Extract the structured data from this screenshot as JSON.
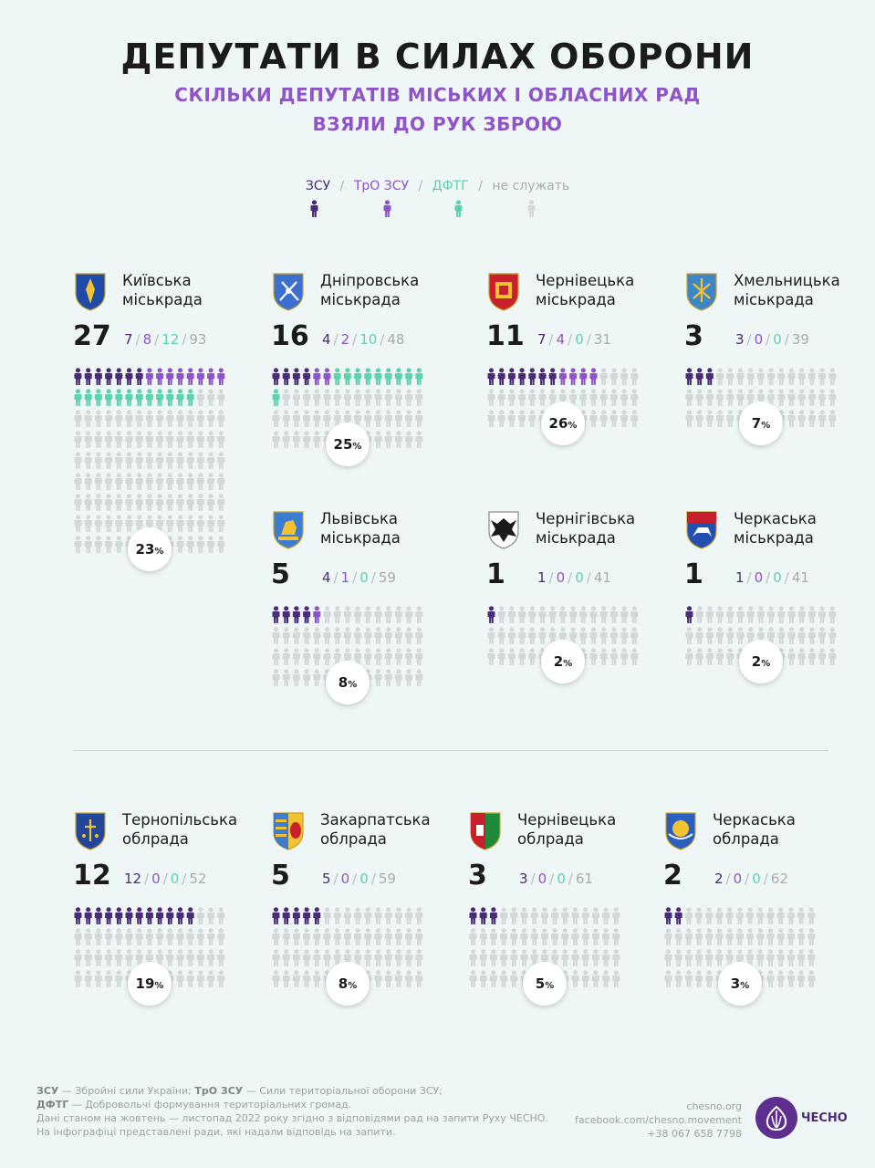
{
  "title": "ДЕПУТАТИ В СИЛАХ ОБОРОНИ",
  "subtitle_line1": "СКІЛЬКИ ДЕПУТАТІВ МІСЬКИХ І ОБЛАСНИХ РАД",
  "subtitle_line2": "ВЗЯЛИ ДО РУК ЗБРОЮ",
  "legend": {
    "zsu": "ЗСУ",
    "tro": "ТрО ЗСУ",
    "dftg": "ДФТГ",
    "not_serving": "не служать",
    "separator": "/"
  },
  "colors": {
    "zsu": "#4a2b78",
    "tro": "#8f54c8",
    "dftg": "#5fd1ad",
    "not_serving": "#d3d9d7"
  },
  "chart_data": {
    "type": "table",
    "columns": [
      "ЗСУ",
      "ТрО ЗСУ",
      "ДФТГ",
      "не служать"
    ],
    "rows": [
      {
        "name_line1": "Київська",
        "name_line2": "міськрада",
        "emblem": "kyiv-emblem",
        "total": 27,
        "zsu": 7,
        "tro": 8,
        "dftg": 12,
        "not_serving": 93,
        "percent": "23"
      },
      {
        "name_line1": "Дніпровська",
        "name_line2": "міськрада",
        "emblem": "dnipro-emblem",
        "total": 16,
        "zsu": 4,
        "tro": 2,
        "dftg": 10,
        "not_serving": 48,
        "percent": "25"
      },
      {
        "name_line1": "Чернівецька",
        "name_line2": "міськрада",
        "emblem": "chernivtsi-emblem",
        "total": 11,
        "zsu": 7,
        "tro": 4,
        "dftg": 0,
        "not_serving": 31,
        "percent": "26"
      },
      {
        "name_line1": "Хмельницька",
        "name_line2": "міськрада",
        "emblem": "khmelnytskyi-emblem",
        "total": 3,
        "zsu": 3,
        "tro": 0,
        "dftg": 0,
        "not_serving": 39,
        "percent": "7"
      },
      {
        "name_line1": "Львівська",
        "name_line2": "міськрада",
        "emblem": "lviv-emblem",
        "total": 5,
        "zsu": 4,
        "tro": 1,
        "dftg": 0,
        "not_serving": 59,
        "percent": "8"
      },
      {
        "name_line1": "Чернігівська",
        "name_line2": "міськрада",
        "emblem": "chernihiv-emblem",
        "total": 1,
        "zsu": 1,
        "tro": 0,
        "dftg": 0,
        "not_serving": 41,
        "percent": "2"
      },
      {
        "name_line1": "Черкаська",
        "name_line2": "міськрада",
        "emblem": "cherkasy-emblem",
        "total": 1,
        "zsu": 1,
        "tro": 0,
        "dftg": 0,
        "not_serving": 41,
        "percent": "2"
      },
      {
        "name_line1": "Тернопільська",
        "name_line2": "облрада",
        "emblem": "ternopil-oblast-emblem",
        "total": 12,
        "zsu": 12,
        "tro": 0,
        "dftg": 0,
        "not_serving": 52,
        "percent": "19"
      },
      {
        "name_line1": "Закарпатська",
        "name_line2": "облрада",
        "emblem": "zakarpattia-oblast-emblem",
        "total": 5,
        "zsu": 5,
        "tro": 0,
        "dftg": 0,
        "not_serving": 59,
        "percent": "8"
      },
      {
        "name_line1": "Чернівецька",
        "name_line2": "облрада",
        "emblem": "chernivtsi-oblast-emblem",
        "total": 3,
        "zsu": 3,
        "tro": 0,
        "dftg": 0,
        "not_serving": 61,
        "percent": "5"
      },
      {
        "name_line1": "Черкаська",
        "name_line2": "облрада",
        "emblem": "cherkasy-oblast-emblem",
        "total": 2,
        "zsu": 2,
        "tro": 0,
        "dftg": 0,
        "not_serving": 62,
        "percent": "3"
      }
    ]
  },
  "percent_sign": "%",
  "footer": {
    "zsu_abbr": "ЗСУ",
    "zsu_def": " — Збройні сили України; ",
    "tro_abbr": "ТрО ЗСУ",
    "tro_def": " — Сили територіальної оборони ЗСУ;",
    "dftg_abbr": "ДФТГ",
    "dftg_def": " — Добровольчі формування територіальних громад.",
    "note1": "Дані станом на жовтень — листопад 2022 року згідно з відповідями рад на запити Руху ЧЕСНО.",
    "note2": "На інфографіці представлені ради, які надали відповідь на запити."
  },
  "contacts": {
    "site": "chesno.org",
    "facebook": "facebook.com/chesno.movement",
    "phone": "+38 067 658 7798"
  },
  "logo_text": "ЧЕСНО"
}
